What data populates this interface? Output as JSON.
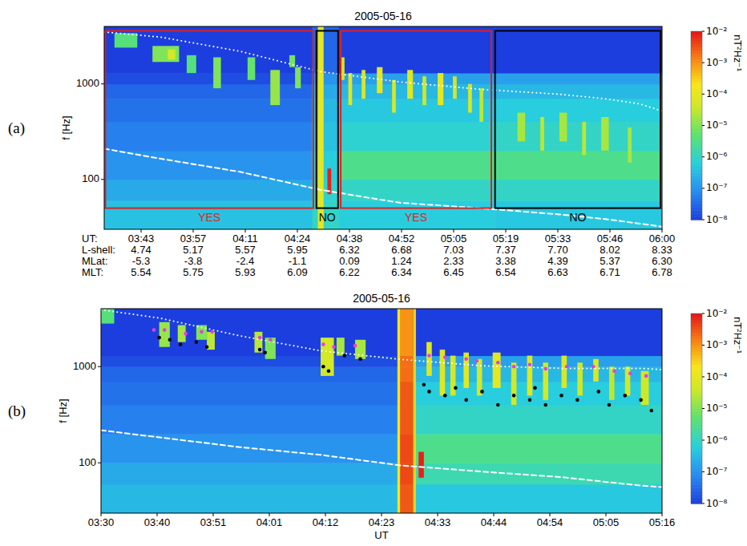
{
  "chart_data": [
    {
      "type": "heatmap",
      "panel": "(a)",
      "title": "2005-05-16",
      "ylabel": "f [Hz]",
      "xlabel": "UT:",
      "log": "y",
      "xlim": [
        213.3,
        360
      ],
      "ylim": [
        30,
        4000
      ],
      "xticks": [
        {
          "value": 223,
          "label": "03:43"
        },
        {
          "value": 236.7,
          "label": "03:57"
        },
        {
          "value": 250.4,
          "label": "04:11"
        },
        {
          "value": 264.1,
          "label": "04:24"
        },
        {
          "value": 277.8,
          "label": "04:38"
        },
        {
          "value": 291.5,
          "label": "04:52"
        },
        {
          "value": 305.2,
          "label": "05:05"
        },
        {
          "value": 318.9,
          "label": "05:19"
        },
        {
          "value": 332.6,
          "label": "05:33"
        },
        {
          "value": 346.3,
          "label": "05:46"
        },
        {
          "value": 360,
          "label": "06:00"
        }
      ],
      "yticks": [
        100,
        1000
      ],
      "x_rows": [
        {
          "label": "L-shell:",
          "values": [
            4.74,
            5.17,
            5.57,
            5.95,
            6.32,
            6.68,
            7.03,
            7.37,
            {
              "value": 7.7,
              "label": "7.70"
            },
            8.02,
            8.33
          ]
        },
        {
          "label": "MLat:",
          "values": [
            -5.3,
            -3.8,
            -2.4,
            -1.1,
            0.09,
            1.24,
            2.33,
            3.38,
            4.39,
            5.37,
            {
              "value": 6.3,
              "label": "6.30"
            }
          ]
        },
        {
          "label": "MLT:",
          "values": [
            5.54,
            5.75,
            5.93,
            6.09,
            6.22,
            6.34,
            6.45,
            6.54,
            6.63,
            6.71,
            6.78
          ]
        }
      ],
      "colorbar": {
        "label": "nT²Hz⁻¹",
        "range": [
          1e-08,
          0.01
        ],
        "ticks": [
          {
            "value": 1e-08,
            "label": "10⁻⁸"
          },
          {
            "value": 1e-07,
            "label": "10⁻⁷"
          },
          {
            "value": 1e-06,
            "label": "10⁻⁶"
          },
          {
            "value": 1e-05,
            "label": "10⁻⁵"
          },
          {
            "value": 0.0001,
            "label": "10⁻⁴"
          },
          {
            "value": 0.001,
            "label": "10⁻³"
          },
          {
            "value": 0.01,
            "label": "10⁻²"
          }
        ]
      },
      "background": {
        "t_edges": [
          213.3,
          268,
          275,
          316,
          360
        ],
        "f_edges": [
          30,
          60,
          100,
          200,
          400,
          700,
          1000,
          1300,
          4000
        ],
        "values": [
          [
            4e-07,
            2e-07,
            1e-07,
            6e-08,
            4e-08,
            3e-08,
            1.5e-08,
            1e-08
          ],
          [
            1e-06,
            8e-07,
            6e-07,
            4e-07,
            3e-07,
            2e-07,
            1e-07,
            3e-08
          ],
          [
            6e-07,
            1e-06,
            3e-06,
            8e-07,
            5e-07,
            3e-07,
            1.5e-07,
            1e-08
          ],
          [
            5e-07,
            1e-06,
            3e-06,
            1e-06,
            6e-07,
            3e-07,
            1.5e-07,
            1e-08
          ]
        ]
      },
      "emissions": [
        {
          "t_start": 216,
          "t_end": 222,
          "f_low": 2400,
          "f_high": 3400,
          "value": 4e-06
        },
        {
          "t_start": 226,
          "t_end": 233,
          "f_low": 1700,
          "f_high": 2500,
          "value": 1e-05
        },
        {
          "t_start": 230,
          "t_end": 232,
          "f_low": 1800,
          "f_high": 2300,
          "value": 5e-05
        },
        {
          "t_start": 235,
          "t_end": 237.5,
          "f_low": 1300,
          "f_high": 2000,
          "value": 4e-06
        },
        {
          "t_start": 242,
          "t_end": 244,
          "f_low": 900,
          "f_high": 1900,
          "value": 1e-05
        },
        {
          "t_start": 251,
          "t_end": 253,
          "f_low": 1100,
          "f_high": 1900,
          "value": 6e-06
        },
        {
          "t_start": 257,
          "t_end": 259.5,
          "f_low": 600,
          "f_high": 1400,
          "value": 1.5e-05
        },
        {
          "t_start": 262,
          "t_end": 263.5,
          "f_low": 1500,
          "f_high": 2000,
          "value": 8e-06
        },
        {
          "t_start": 263.5,
          "t_end": 265,
          "f_low": 900,
          "f_high": 1500,
          "value": 1e-05
        },
        {
          "t_start": 269.5,
          "t_end": 271,
          "f_low": 30,
          "f_high": 4000,
          "value": 0.0001
        },
        {
          "t_start": 272,
          "t_end": 273,
          "f_low": 70,
          "f_high": 130,
          "value": 0.008
        },
        {
          "t_start": 275.5,
          "t_end": 276.5,
          "f_low": 1100,
          "f_high": 1900,
          "value": 5e-05
        },
        {
          "t_start": 277.5,
          "t_end": 278.5,
          "f_low": 600,
          "f_high": 1300,
          "value": 8e-05
        },
        {
          "t_start": 281,
          "t_end": 282,
          "f_low": 700,
          "f_high": 1400,
          "value": 6e-05
        },
        {
          "t_start": 285,
          "t_end": 286.5,
          "f_low": 800,
          "f_high": 1500,
          "value": 0.0001
        },
        {
          "t_start": 289,
          "t_end": 290,
          "f_low": 500,
          "f_high": 1100,
          "value": 5e-05
        },
        {
          "t_start": 293,
          "t_end": 294.5,
          "f_low": 700,
          "f_high": 1400,
          "value": 8e-05
        },
        {
          "t_start": 297,
          "t_end": 298,
          "f_low": 600,
          "f_high": 1200,
          "value": 4e-05
        },
        {
          "t_start": 301,
          "t_end": 302.5,
          "f_low": 600,
          "f_high": 1300,
          "value": 0.0001
        },
        {
          "t_start": 305,
          "t_end": 306,
          "f_low": 700,
          "f_high": 1200,
          "value": 4e-05
        },
        {
          "t_start": 309,
          "t_end": 310,
          "f_low": 500,
          "f_high": 1000,
          "value": 5e-05
        },
        {
          "t_start": 312,
          "t_end": 313,
          "f_low": 400,
          "f_high": 900,
          "value": 3e-05
        },
        {
          "t_start": 322,
          "t_end": 324,
          "f_low": 250,
          "f_high": 500,
          "value": 2e-05
        },
        {
          "t_start": 328,
          "t_end": 329,
          "f_low": 200,
          "f_high": 450,
          "value": 3e-05
        },
        {
          "t_start": 333,
          "t_end": 335,
          "f_low": 250,
          "f_high": 500,
          "value": 2e-05
        },
        {
          "t_start": 339,
          "t_end": 340,
          "f_low": 180,
          "f_high": 400,
          "value": 3e-05
        },
        {
          "t_start": 344,
          "t_end": 346,
          "f_low": 200,
          "f_high": 450,
          "value": 2e-05
        },
        {
          "t_start": 351,
          "t_end": 352,
          "f_low": 150,
          "f_high": 350,
          "value": 2e-05
        }
      ],
      "series": [
        {
          "type": "line",
          "color": "#ffffff",
          "line_style": "dotted",
          "x": [
            213.3,
            228,
            249,
            270,
            291,
            312,
            333,
            345,
            354,
            360
          ],
          "values": [
            3500,
            3100,
            2200,
            1350,
            1050,
            880,
            780,
            700,
            620,
            520
          ]
        },
        {
          "type": "line",
          "color": "#ffffff",
          "line_style": "dashed",
          "x": [
            213.3,
            228,
            249,
            270,
            281,
            291,
            312,
            333,
            346,
            360
          ],
          "values": [
            210,
            165,
            120,
            78,
            66,
            57,
            50,
            43,
            38,
            32
          ]
        }
      ],
      "boxes": [
        {
          "t_start": 213.6,
          "t_end": 268.3,
          "f_low": 50,
          "f_high": 3600,
          "label": "YES",
          "color": "#e02020"
        },
        {
          "t_start": 269.1,
          "t_end": 274.8,
          "f_low": 50,
          "f_high": 3600,
          "label": "NO",
          "color": "#000000"
        },
        {
          "t_start": 275.5,
          "t_end": 315.1,
          "f_low": 50,
          "f_high": 3600,
          "label": "YES",
          "color": "#e02020"
        },
        {
          "t_start": 316.1,
          "t_end": 359.6,
          "f_low": 50,
          "f_high": 3600,
          "label": "NO",
          "color": "#000000"
        }
      ]
    },
    {
      "type": "heatmap",
      "panel": "(b)",
      "title": "2005-05-16",
      "ylabel": "f [Hz]",
      "xlabel": "UT",
      "log": "y",
      "xlim": [
        210,
        316
      ],
      "ylim": [
        30,
        4000
      ],
      "xticks": [
        {
          "value": 210,
          "label": "03:30"
        },
        {
          "value": 220.6,
          "label": "03:40"
        },
        {
          "value": 231.2,
          "label": "03:51"
        },
        {
          "value": 241.8,
          "label": "04:01"
        },
        {
          "value": 252.4,
          "label": "04:12"
        },
        {
          "value": 263,
          "label": "04:23"
        },
        {
          "value": 273.6,
          "label": "04:33"
        },
        {
          "value": 284.2,
          "label": "04:44"
        },
        {
          "value": 294.8,
          "label": "04:54"
        },
        {
          "value": 305.4,
          "label": "05:05"
        },
        {
          "value": 316,
          "label": "05:16"
        }
      ],
      "yticks": [
        100,
        1000
      ],
      "colorbar": {
        "label": "nT²Hz⁻¹",
        "range": [
          1e-08,
          0.01
        ],
        "ticks": [
          {
            "value": 1e-08,
            "label": "10⁻⁸"
          },
          {
            "value": 1e-07,
            "label": "10⁻⁷"
          },
          {
            "value": 1e-06,
            "label": "10⁻⁶"
          },
          {
            "value": 1e-05,
            "label": "10⁻⁵"
          },
          {
            "value": 0.0001,
            "label": "10⁻⁴"
          },
          {
            "value": 0.001,
            "label": "10⁻³"
          },
          {
            "value": 0.01,
            "label": "10⁻²"
          }
        ]
      },
      "background": {
        "t_edges": [
          210,
          266.5,
          269,
          316
        ],
        "f_edges": [
          30,
          60,
          100,
          200,
          400,
          700,
          1000,
          1300,
          4000
        ],
        "values": [
          [
            3e-07,
            2e-07,
            1e-07,
            6e-08,
            4e-08,
            3e-08,
            1.5e-08,
            1e-08
          ],
          [
            0.003,
            0.004,
            0.004,
            0.003,
            0.003,
            0.002,
            0.002,
            0.001
          ],
          [
            5e-07,
            1.5e-06,
            3e-06,
            1e-06,
            6e-07,
            3e-07,
            1.5e-07,
            1e-08
          ]
        ]
      },
      "emissions": [
        {
          "t_start": 210,
          "t_end": 212.5,
          "f_low": 2800,
          "f_high": 4000,
          "value": 4e-06
        },
        {
          "t_start": 221,
          "t_end": 223,
          "f_low": 1600,
          "f_high": 2900,
          "value": 1.5e-05
        },
        {
          "t_start": 224.5,
          "t_end": 226,
          "f_low": 1800,
          "f_high": 2700,
          "value": 2e-05
        },
        {
          "t_start": 228,
          "t_end": 230,
          "f_low": 1900,
          "f_high": 2700,
          "value": 1e-05
        },
        {
          "t_start": 230,
          "t_end": 231.5,
          "f_low": 1500,
          "f_high": 2300,
          "value": 3e-05
        },
        {
          "t_start": 239,
          "t_end": 240.5,
          "f_low": 1400,
          "f_high": 2300,
          "value": 3e-05
        },
        {
          "t_start": 241,
          "t_end": 243,
          "f_low": 1200,
          "f_high": 2000,
          "value": 1e-05
        },
        {
          "t_start": 251.5,
          "t_end": 254,
          "f_low": 800,
          "f_high": 2000,
          "value": 5e-05
        },
        {
          "t_start": 254.5,
          "t_end": 256,
          "f_low": 1300,
          "f_high": 2000,
          "value": 2e-05
        },
        {
          "t_start": 258,
          "t_end": 260,
          "f_low": 1200,
          "f_high": 1900,
          "value": 2e-05
        },
        {
          "t_start": 266,
          "t_end": 266.5,
          "f_low": 30,
          "f_high": 4000,
          "value": 0.0002
        },
        {
          "t_start": 269,
          "t_end": 269.5,
          "f_low": 30,
          "f_high": 4000,
          "value": 0.0003
        },
        {
          "t_start": 270,
          "t_end": 271,
          "f_low": 70,
          "f_high": 130,
          "value": 0.008
        },
        {
          "t_start": 271.5,
          "t_end": 272.5,
          "f_low": 800,
          "f_high": 1800,
          "value": 8e-05
        },
        {
          "t_start": 274,
          "t_end": 275,
          "f_low": 500,
          "f_high": 1500,
          "value": 8e-05
        },
        {
          "t_start": 276,
          "t_end": 277,
          "f_low": 500,
          "f_high": 1300,
          "value": 5e-05
        },
        {
          "t_start": 278.5,
          "t_end": 279.5,
          "f_low": 600,
          "f_high": 1400,
          "value": 0.0001
        },
        {
          "t_start": 281,
          "t_end": 282,
          "f_low": 500,
          "f_high": 1200,
          "value": 5e-05
        },
        {
          "t_start": 284,
          "t_end": 285.5,
          "f_low": 600,
          "f_high": 1400,
          "value": 0.0001
        },
        {
          "t_start": 287.5,
          "t_end": 288.5,
          "f_low": 400,
          "f_high": 1100,
          "value": 5e-05
        },
        {
          "t_start": 290.5,
          "t_end": 291.5,
          "f_low": 500,
          "f_high": 1300,
          "value": 8e-05
        },
        {
          "t_start": 293.5,
          "t_end": 294.5,
          "f_low": 450,
          "f_high": 1100,
          "value": 5e-05
        },
        {
          "t_start": 297,
          "t_end": 298,
          "f_low": 600,
          "f_high": 1300,
          "value": 6e-05
        },
        {
          "t_start": 300,
          "t_end": 301,
          "f_low": 500,
          "f_high": 1100,
          "value": 4e-05
        },
        {
          "t_start": 303,
          "t_end": 304,
          "f_low": 700,
          "f_high": 1200,
          "value": 6e-05
        },
        {
          "t_start": 306,
          "t_end": 307,
          "f_low": 450,
          "f_high": 1000,
          "value": 3e-05
        },
        {
          "t_start": 309,
          "t_end": 310,
          "f_low": 500,
          "f_high": 1000,
          "value": 5e-05
        },
        {
          "t_start": 312,
          "t_end": 313.5,
          "f_low": 400,
          "f_high": 900,
          "value": 4e-05
        }
      ],
      "series": [
        {
          "type": "line",
          "color": "#ffffff",
          "line_style": "dotted",
          "x": [
            210,
            221,
            236,
            251.5,
            266.6,
            282,
            297,
            312,
            316
          ],
          "values": [
            3900,
            3200,
            2100,
            1460,
            1190,
            1020,
            960,
            960,
            930
          ]
        },
        {
          "type": "line",
          "color": "#ffffff",
          "line_style": "dashed",
          "x": [
            210,
            221,
            236,
            251.5,
            266.6,
            282,
            297,
            312,
            316
          ],
          "values": [
            218,
            184,
            146,
            121,
            94,
            81,
            71,
            58,
            56
          ]
        },
        {
          "type": "scatter",
          "color": "#e040e0",
          "marker": "circle",
          "x": [
            220,
            222,
            226,
            229,
            231,
            240,
            242,
            252,
            254,
            258,
            272,
            275,
            279,
            281,
            285,
            288,
            291,
            294,
            298,
            303,
            307,
            310,
            313
          ],
          "values": [
            2400,
            2400,
            2200,
            2300,
            2300,
            2000,
            1900,
            1700,
            1600,
            1650,
            1300,
            1250,
            1200,
            1150,
            1100,
            1000,
            1050,
            950,
            1000,
            1000,
            900,
            850,
            800
          ]
        },
        {
          "type": "scatter",
          "color": "#000000",
          "marker": "circle",
          "x": [
            221,
            223,
            225,
            228,
            230,
            240,
            241,
            252,
            253,
            256,
            259,
            271,
            272,
            275,
            277,
            279,
            282,
            285,
            288,
            291,
            292,
            294,
            297,
            300,
            304,
            306,
            309,
            312,
            314
          ],
          "values": [
            2000,
            1900,
            1700,
            1800,
            1600,
            1500,
            1400,
            1000,
            900,
            1300,
            1200,
            650,
            550,
            500,
            600,
            450,
            550,
            400,
            500,
            450,
            600,
            400,
            500,
            450,
            550,
            400,
            500,
            450,
            350
          ]
        }
      ]
    }
  ]
}
